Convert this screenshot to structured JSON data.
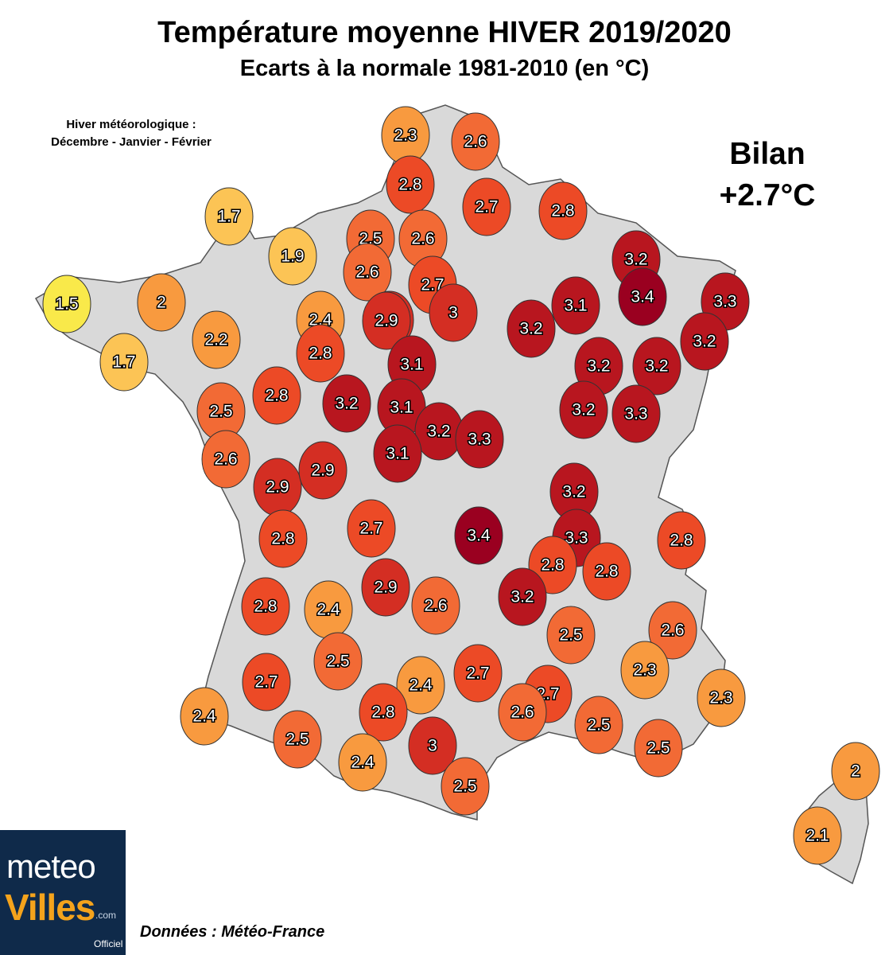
{
  "title": "Température moyenne HIVER 2019/2020",
  "subtitle": "Ecarts à la normale 1981-2010 (en °C)",
  "note": {
    "line1": "Hiver météorologique :",
    "line2": "Décembre - Janvier - Février"
  },
  "bilan": {
    "label": "Bilan",
    "value": "+2.7°C"
  },
  "source": "Données : Météo-France",
  "logo": {
    "part1": "meteo",
    "part2": "Villes",
    "domain": ".com",
    "official": "Officiel"
  },
  "colors": {
    "land": "#d9d9d9",
    "border": "#555555",
    "scale": [
      "#f9e94a",
      "#fcc455",
      "#f89a3f",
      "#f26a35",
      "#ec4a26",
      "#d42e23",
      "#b8161f",
      "#9a0020"
    ]
  },
  "stations": [
    {
      "value": "2.3"
    },
    {
      "value": "2.6"
    },
    {
      "value": "2.8"
    },
    {
      "value": "2.7"
    },
    {
      "value": "2.8"
    },
    {
      "value": "1.7"
    },
    {
      "value": "1.9"
    },
    {
      "value": "2.5"
    },
    {
      "value": "2.6"
    },
    {
      "value": "2.6"
    },
    {
      "value": "2.7"
    },
    {
      "value": "3"
    },
    {
      "value": "2.9"
    },
    {
      "value": "3.2"
    },
    {
      "value": "3.3"
    },
    {
      "value": "1.5"
    },
    {
      "value": "2"
    },
    {
      "value": "2.4"
    },
    {
      "value": "2.9"
    },
    {
      "value": "3.2"
    },
    {
      "value": "3.1"
    },
    {
      "value": "3.4"
    },
    {
      "value": "2.2"
    },
    {
      "value": "1.7"
    },
    {
      "value": "2.8"
    },
    {
      "value": "3.1"
    },
    {
      "value": "3.2"
    },
    {
      "value": "3.2"
    },
    {
      "value": "3.2"
    },
    {
      "value": "2.5"
    },
    {
      "value": "2.8"
    },
    {
      "value": "3.2"
    },
    {
      "value": "3.1"
    },
    {
      "value": "3.2"
    },
    {
      "value": "3.3"
    },
    {
      "value": "3.2"
    },
    {
      "value": "3.3"
    },
    {
      "value": "2.6"
    },
    {
      "value": "2.9"
    },
    {
      "value": "2.9"
    },
    {
      "value": "3.1"
    },
    {
      "value": "3.2"
    },
    {
      "value": "2.8"
    },
    {
      "value": "2.7"
    },
    {
      "value": "3.4"
    },
    {
      "value": "3.3"
    },
    {
      "value": "2.8"
    },
    {
      "value": "2.8"
    },
    {
      "value": "2.8"
    },
    {
      "value": "2.8"
    },
    {
      "value": "2.4"
    },
    {
      "value": "2.9"
    },
    {
      "value": "2.6"
    },
    {
      "value": "3.2"
    },
    {
      "value": "2.5"
    },
    {
      "value": "2.6"
    },
    {
      "value": "2.5"
    },
    {
      "value": "2.3"
    },
    {
      "value": "2.7"
    },
    {
      "value": "2.4"
    },
    {
      "value": "2.7"
    },
    {
      "value": "2.7"
    },
    {
      "value": "2.3"
    },
    {
      "value": "2.4"
    },
    {
      "value": "2.8"
    },
    {
      "value": "2.6"
    },
    {
      "value": "2.5"
    },
    {
      "value": "2.5"
    },
    {
      "value": "2.5"
    },
    {
      "value": "3"
    },
    {
      "value": "2.4"
    },
    {
      "value": "2.5"
    },
    {
      "value": "2"
    },
    {
      "value": "2.1"
    }
  ]
}
